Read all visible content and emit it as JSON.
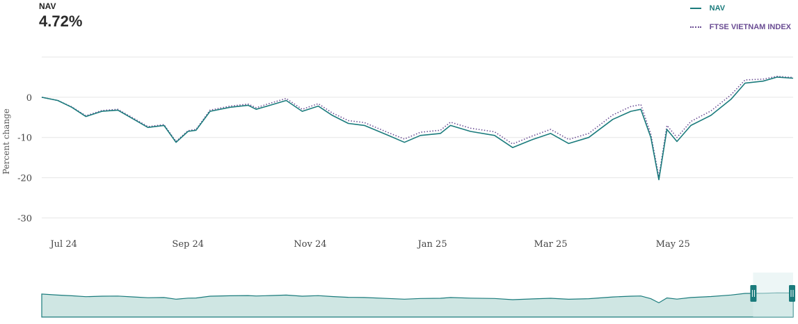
{
  "header": {
    "label": "NAV",
    "value": "4.72%"
  },
  "legend": {
    "nav": "NAV",
    "index": "FTSE VIETNAM INDEX"
  },
  "colors": {
    "nav": "#1a7b7c",
    "index": "#6a4c93",
    "navigator_fill": "#cfe6e3",
    "handle": "#1a7b7c"
  },
  "navigator": {
    "handle_icon": "grip-lines-icon",
    "window_start": "2025-06-10",
    "window_end": "2025-06-30"
  },
  "chart_data": {
    "type": "line",
    "xlabel": "",
    "ylabel": "Percent change",
    "ylim": [
      -32,
      10
    ],
    "yticks": [
      0,
      -10,
      -20,
      -30
    ],
    "xticks": [
      {
        "label": "Jul 24",
        "date": "2024-07-01"
      },
      {
        "label": "Sep 24",
        "date": "2024-09-01"
      },
      {
        "label": "Nov 24",
        "date": "2024-11-01"
      },
      {
        "label": "Jan 25",
        "date": "2025-01-01"
      },
      {
        "label": "Mar 25",
        "date": "2025-03-01"
      },
      {
        "label": "May 25",
        "date": "2025-05-01"
      }
    ],
    "x_range": [
      "2024-06-20",
      "2025-06-30"
    ],
    "grid": true,
    "legend_position": "top-right",
    "series": [
      {
        "name": "NAV",
        "style": "solid",
        "points": [
          [
            "2024-06-20",
            0
          ],
          [
            "2024-06-28",
            -0.8
          ],
          [
            "2024-07-05",
            -2.5
          ],
          [
            "2024-07-12",
            -4.8
          ],
          [
            "2024-07-20",
            -3.5
          ],
          [
            "2024-07-28",
            -3.2
          ],
          [
            "2024-08-05",
            -5.5
          ],
          [
            "2024-08-12",
            -7.5
          ],
          [
            "2024-08-20",
            -7.0
          ],
          [
            "2024-08-26",
            -11.2
          ],
          [
            "2024-09-01",
            -8.5
          ],
          [
            "2024-09-05",
            -8.2
          ],
          [
            "2024-09-12",
            -3.5
          ],
          [
            "2024-09-22",
            -2.5
          ],
          [
            "2024-10-01",
            -2.0
          ],
          [
            "2024-10-05",
            -3.0
          ],
          [
            "2024-10-12",
            -2.0
          ],
          [
            "2024-10-20",
            -0.8
          ],
          [
            "2024-10-28",
            -3.5
          ],
          [
            "2024-11-05",
            -2.2
          ],
          [
            "2024-11-12",
            -4.5
          ],
          [
            "2024-11-20",
            -6.5
          ],
          [
            "2024-11-28",
            -7.0
          ],
          [
            "2024-12-10",
            -9.5
          ],
          [
            "2024-12-18",
            -11.2
          ],
          [
            "2024-12-26",
            -9.5
          ],
          [
            "2025-01-05",
            -9.0
          ],
          [
            "2025-01-10",
            -7.0
          ],
          [
            "2025-01-20",
            -8.5
          ],
          [
            "2025-02-01",
            -9.5
          ],
          [
            "2025-02-10",
            -12.5
          ],
          [
            "2025-02-20",
            -10.5
          ],
          [
            "2025-03-01",
            -9.0
          ],
          [
            "2025-03-10",
            -11.5
          ],
          [
            "2025-03-20",
            -10.0
          ],
          [
            "2025-04-01",
            -5.5
          ],
          [
            "2025-04-10",
            -3.5
          ],
          [
            "2025-04-15",
            -3.0
          ],
          [
            "2025-04-20",
            -10.0
          ],
          [
            "2025-04-24",
            -20.5
          ],
          [
            "2025-04-28",
            -8.0
          ],
          [
            "2025-05-03",
            -11.0
          ],
          [
            "2025-05-10",
            -7.0
          ],
          [
            "2025-05-20",
            -4.5
          ],
          [
            "2025-05-30",
            -0.5
          ],
          [
            "2025-06-06",
            3.5
          ],
          [
            "2025-06-15",
            4.0
          ],
          [
            "2025-06-22",
            5.0
          ],
          [
            "2025-06-30",
            4.72
          ]
        ]
      },
      {
        "name": "FTSE VIETNAM INDEX",
        "style": "dotted",
        "points": [
          [
            "2024-06-20",
            0
          ],
          [
            "2024-06-28",
            -0.8
          ],
          [
            "2024-07-05",
            -2.4
          ],
          [
            "2024-07-12",
            -4.6
          ],
          [
            "2024-07-20",
            -3.3
          ],
          [
            "2024-07-28",
            -3.0
          ],
          [
            "2024-08-05",
            -5.3
          ],
          [
            "2024-08-12",
            -7.3
          ],
          [
            "2024-08-20",
            -6.8
          ],
          [
            "2024-08-26",
            -11.0
          ],
          [
            "2024-09-01",
            -8.3
          ],
          [
            "2024-09-05",
            -8.0
          ],
          [
            "2024-09-12",
            -3.2
          ],
          [
            "2024-09-22",
            -2.2
          ],
          [
            "2024-10-01",
            -1.7
          ],
          [
            "2024-10-05",
            -2.6
          ],
          [
            "2024-10-12",
            -1.5
          ],
          [
            "2024-10-20",
            -0.3
          ],
          [
            "2024-10-28",
            -3.0
          ],
          [
            "2024-11-05",
            -1.6
          ],
          [
            "2024-11-12",
            -3.9
          ],
          [
            "2024-11-20",
            -5.8
          ],
          [
            "2024-11-28",
            -6.3
          ],
          [
            "2024-12-10",
            -8.8
          ],
          [
            "2024-12-18",
            -10.4
          ],
          [
            "2024-12-26",
            -8.7
          ],
          [
            "2025-01-05",
            -8.2
          ],
          [
            "2025-01-10",
            -6.2
          ],
          [
            "2025-01-20",
            -7.7
          ],
          [
            "2025-02-01",
            -8.6
          ],
          [
            "2025-02-10",
            -11.6
          ],
          [
            "2025-02-20",
            -9.6
          ],
          [
            "2025-03-01",
            -8.0
          ],
          [
            "2025-03-10",
            -10.5
          ],
          [
            "2025-03-20",
            -9.0
          ],
          [
            "2025-04-01",
            -4.4
          ],
          [
            "2025-04-10",
            -2.3
          ],
          [
            "2025-04-15",
            -1.8
          ],
          [
            "2025-04-20",
            -9.2
          ],
          [
            "2025-04-24",
            -19.8
          ],
          [
            "2025-04-28",
            -7.0
          ],
          [
            "2025-05-03",
            -10.0
          ],
          [
            "2025-05-10",
            -6.0
          ],
          [
            "2025-05-20",
            -3.4
          ],
          [
            "2025-05-30",
            0.6
          ],
          [
            "2025-06-06",
            4.3
          ],
          [
            "2025-06-15",
            4.5
          ],
          [
            "2025-06-22",
            5.2
          ],
          [
            "2025-06-30",
            4.9
          ]
        ]
      }
    ]
  }
}
